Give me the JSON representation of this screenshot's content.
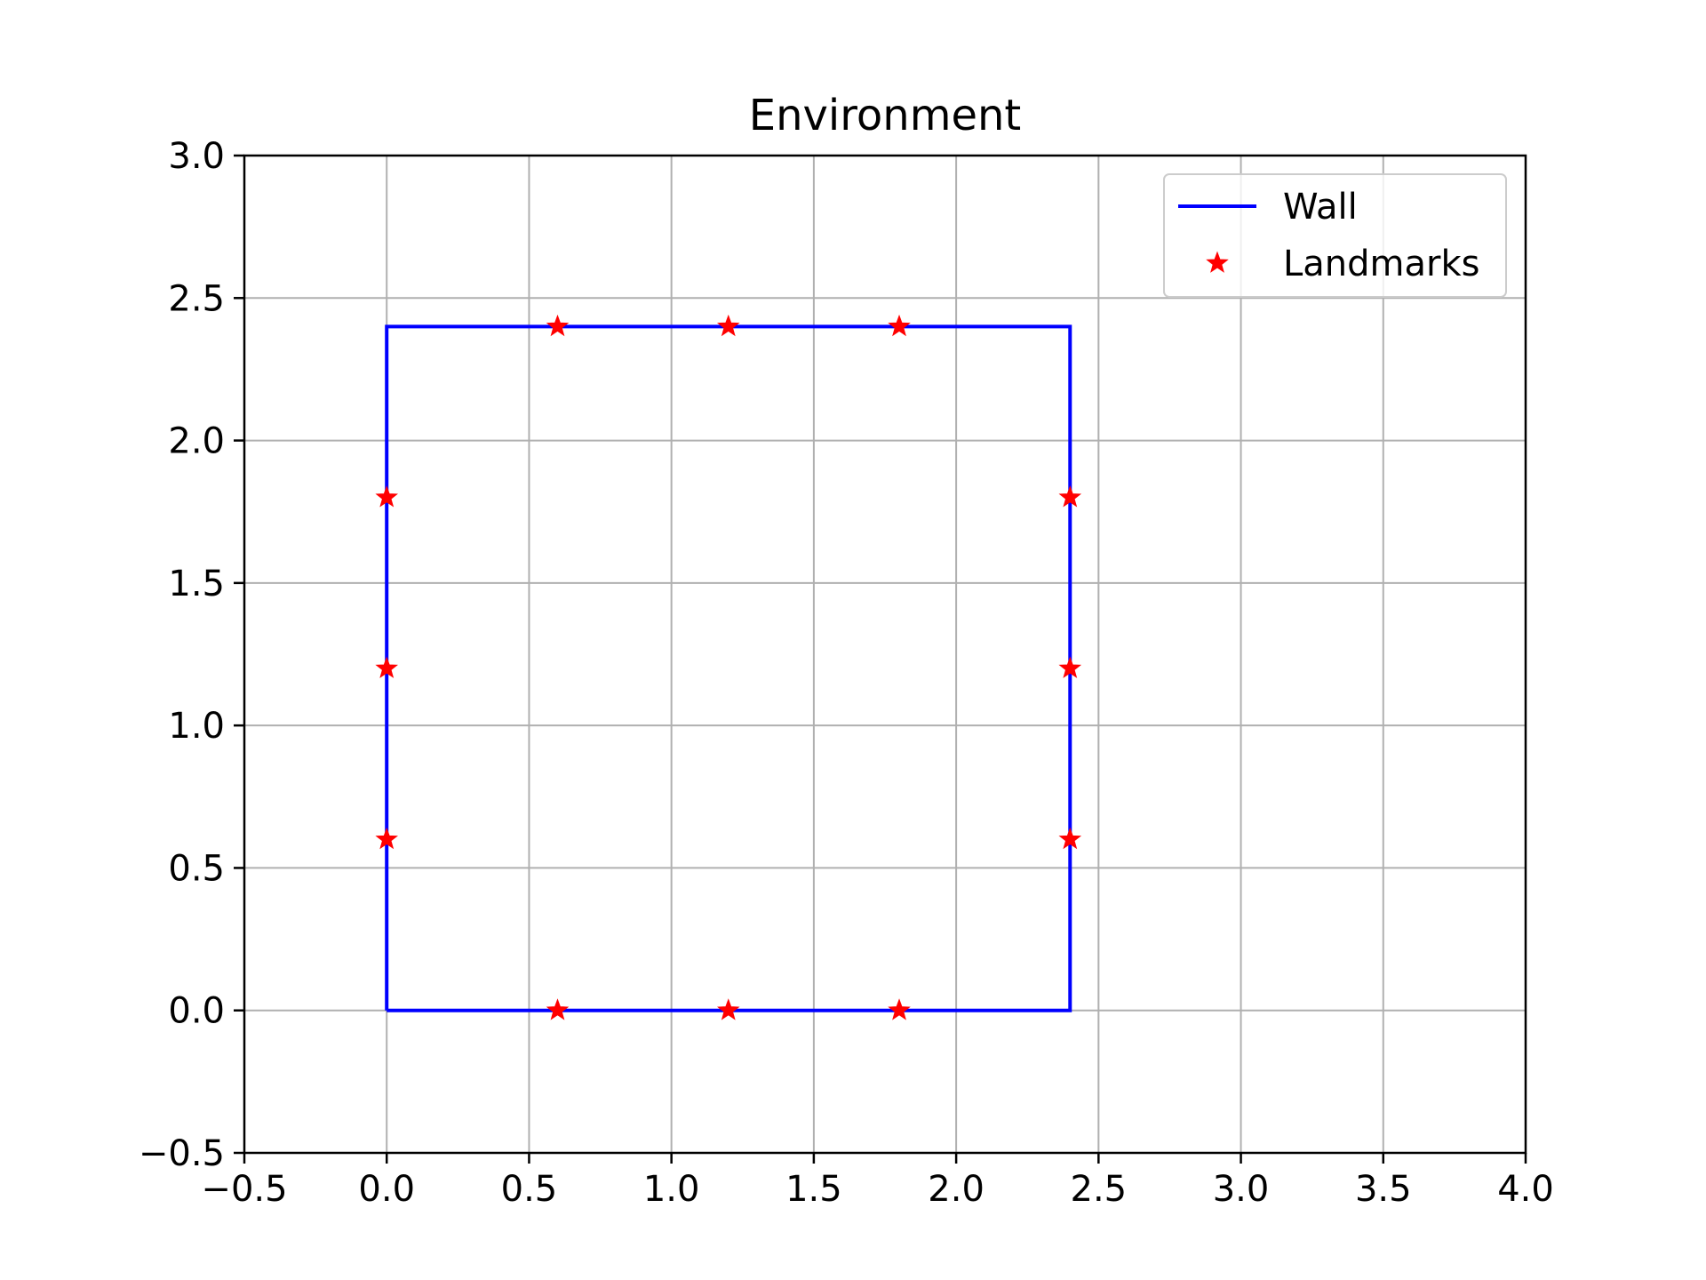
{
  "chart_data": {
    "type": "line",
    "title": "Environment",
    "xlabel": "",
    "ylabel": "",
    "xlim": [
      -0.5,
      4.0
    ],
    "ylim": [
      -0.5,
      3.0
    ],
    "grid": true,
    "legend_position": "top-right",
    "x_ticks": [
      -0.5,
      0.0,
      0.5,
      1.0,
      1.5,
      2.0,
      2.5,
      3.0,
      3.5,
      4.0
    ],
    "x_tick_labels": [
      "−0.5",
      "0.0",
      "0.5",
      "1.0",
      "1.5",
      "2.0",
      "2.5",
      "3.0",
      "3.5",
      "4.0"
    ],
    "y_ticks": [
      -0.5,
      0.0,
      0.5,
      1.0,
      1.5,
      2.0,
      2.5,
      3.0
    ],
    "y_tick_labels": [
      "−0.5",
      "0.0",
      "0.5",
      "1.0",
      "1.5",
      "2.0",
      "2.5",
      "3.0"
    ],
    "series": [
      {
        "name": "Wall",
        "type": "line",
        "color": "#0000ff",
        "x": [
          0.0,
          2.4,
          2.4,
          0.0,
          0.0
        ],
        "y": [
          0.0,
          0.0,
          2.4,
          2.4,
          0.0
        ]
      },
      {
        "name": "Landmarks",
        "type": "scatter",
        "marker": "star",
        "color": "#ff0000",
        "x": [
          0.6,
          1.2,
          1.8,
          0.6,
          1.2,
          1.8,
          0.0,
          0.0,
          0.0,
          2.4,
          2.4,
          2.4
        ],
        "y": [
          0.0,
          0.0,
          0.0,
          2.4,
          2.4,
          2.4,
          0.6,
          1.2,
          1.8,
          0.6,
          1.2,
          1.8
        ]
      }
    ],
    "legend": [
      {
        "label": "Wall",
        "style": "line",
        "color": "#0000ff"
      },
      {
        "label": "Landmarks",
        "style": "star",
        "color": "#ff0000"
      }
    ]
  }
}
